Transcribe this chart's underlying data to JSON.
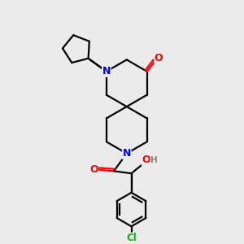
{
  "bg_color": "#ebebeb",
  "atom_colors": {
    "N": "#0000ff",
    "O": "#ff0000",
    "Cl": "#00bb00",
    "C": "#000000",
    "H": "#888888"
  },
  "bond_color": "#000000",
  "bond_width": 1.6,
  "fig_bg": "#ebebeb"
}
